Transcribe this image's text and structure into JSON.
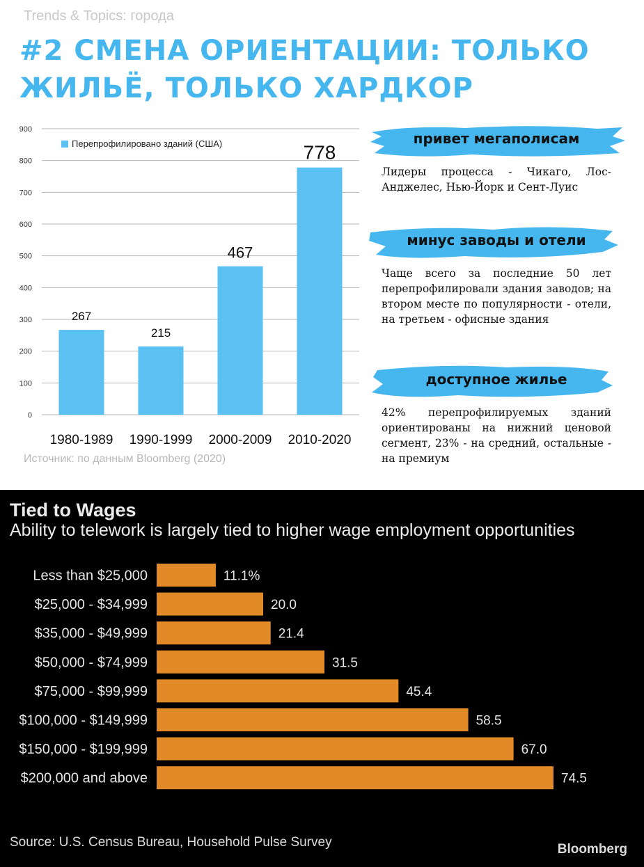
{
  "header": {
    "kicker": "Trends & Topics: города",
    "title": "#2 СМЕНА ОРИЕНТАЦИИ: ТОЛЬКО ЖИЛЬЁ, ТОЛЬКО ХАРДКОР"
  },
  "colors": {
    "accent": "#45b6ee",
    "bar_blue": "#5bc0f2",
    "bar_orange": "#e28a27",
    "bottom_bg": "#000000"
  },
  "chart_data": [
    {
      "type": "bar",
      "categories": [
        "1980-1989",
        "1990-1999",
        "2000-2009",
        "2010-2020"
      ],
      "series": [
        {
          "name": "Перепрофилировано зданий (США)",
          "values": [
            267,
            215,
            467,
            778
          ]
        }
      ],
      "data_labels": [
        "267",
        "215",
        "467",
        "778"
      ],
      "yticks": [
        "0",
        "100",
        "200",
        "300",
        "400",
        "500",
        "600",
        "700",
        "800",
        "900"
      ],
      "ylim": [
        0,
        900
      ],
      "grid": true,
      "legend": "top-left",
      "source": "Источник: по данным Bloomberg (2020)"
    },
    {
      "type": "bar",
      "orientation": "horizontal",
      "title": "Tied to Wages",
      "subtitle": "Ability to telework is largely tied to higher wage employment opportunities",
      "categories": [
        "Less than $25,000",
        "$25,000 - $34,999",
        "$35,000 - $49,999",
        "$50,000 - $74,999",
        "$75,000 - $99,999",
        "$100,000 - $149,999",
        "$150,000 - $199,999",
        "$200,000 and above"
      ],
      "values": [
        11.1,
        20.0,
        21.4,
        31.5,
        45.4,
        58.5,
        67.0,
        74.5
      ],
      "data_labels": [
        "11.1%",
        "20.0",
        "21.4",
        "31.5",
        "45.4",
        "58.5",
        "67.0",
        "74.5"
      ],
      "xlim": [
        0,
        100
      ],
      "source": "Source: U.S. Census Bureau, Household Pulse Survey",
      "brand": "Bloomberg"
    }
  ],
  "sidebar": {
    "blocks": [
      {
        "heading": "привет мегаполисам",
        "text": "Лидеры процесса - Чикаго, Лос-Анджелес, Нью-Йорк и Сент-Луис"
      },
      {
        "heading": "минус заводы и отели",
        "text": "Чаще всего за последние 50 лет перепрофилировали здания заводов; на втором месте по популярности - отели, на третьем - офисные здания"
      },
      {
        "heading": "доступное жилье",
        "text": "42% перепрофилируемых зданий ориентированы на нижний ценовой сегмент, 23% - на средний, остальные - на премиум"
      }
    ]
  }
}
